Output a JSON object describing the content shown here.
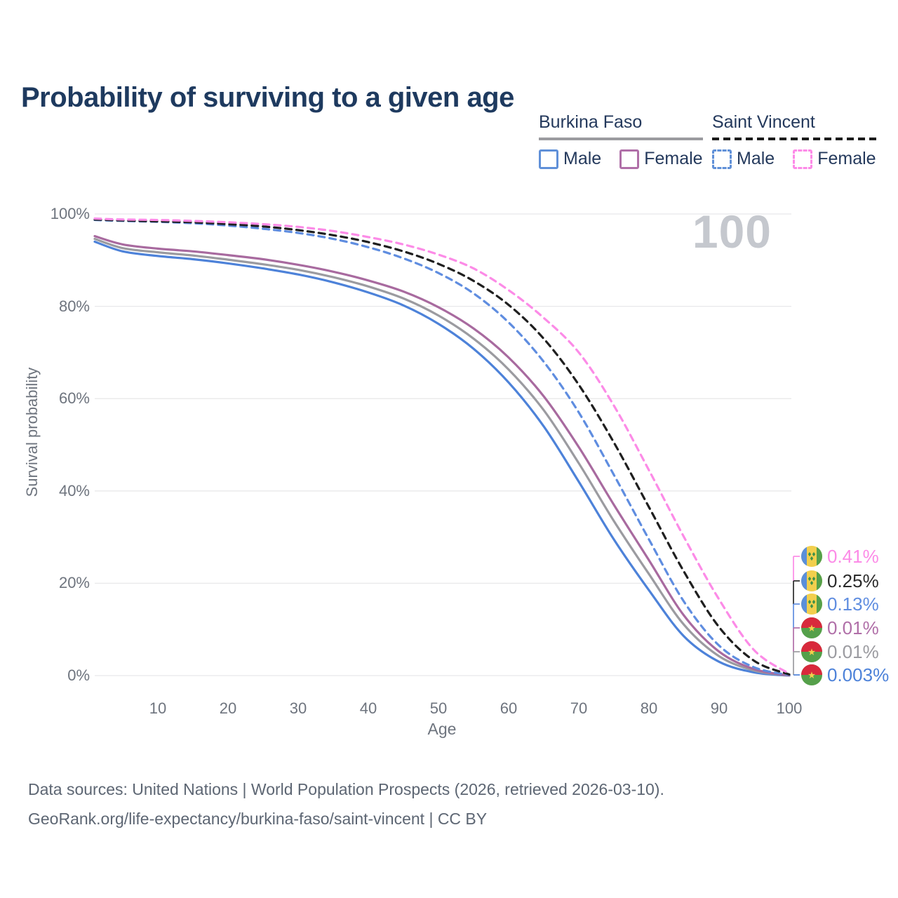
{
  "header": {
    "title": "Probability of surviving to a given age"
  },
  "watermark": "100",
  "legend": {
    "groups": [
      {
        "title": "Burkina Faso",
        "line_style": "solid",
        "line_color": "#9b9ba0",
        "items": [
          {
            "label": "Male",
            "color": "#6090d8",
            "style": "solid"
          },
          {
            "label": "Female",
            "color": "#b06fa8",
            "style": "solid"
          }
        ]
      },
      {
        "title": "Saint Vincent",
        "line_style": "dashed",
        "line_color": "#1c1c1c",
        "items": [
          {
            "label": "Male",
            "color": "#6090d8",
            "style": "dashed"
          },
          {
            "label": "Female",
            "color": "#fd8ae8",
            "style": "dashed"
          }
        ]
      }
    ]
  },
  "chart_data": {
    "type": "line",
    "title": "Probability of surviving to a given age",
    "xlabel": "Age",
    "ylabel": "Survival probability",
    "xlim": [
      1,
      100
    ],
    "ylim": [
      0,
      100
    ],
    "grid": "horizontal",
    "xticks": [
      10,
      20,
      30,
      40,
      50,
      60,
      70,
      80,
      90,
      100
    ],
    "ytick_pcts": [
      0,
      20,
      40,
      60,
      80,
      100
    ],
    "ytick_labels": [
      "0%",
      "20%",
      "40%",
      "60%",
      "80%",
      "100%"
    ],
    "x": [
      1,
      5,
      10,
      15,
      20,
      25,
      30,
      35,
      40,
      45,
      50,
      55,
      60,
      65,
      70,
      75,
      80,
      85,
      90,
      95,
      100
    ],
    "series": [
      {
        "id": "burkina-faso-male",
        "name": "Burkina Faso Male",
        "color": "#4d82d9",
        "dash": "solid",
        "values": [
          94.0,
          91.9,
          90.9,
          90.2,
          89.3,
          88.2,
          86.9,
          85.2,
          83.0,
          80.2,
          76.2,
          70.8,
          63.5,
          54.0,
          42.0,
          29.5,
          18.5,
          8.5,
          3.0,
          0.7,
          0.003
        ]
      },
      {
        "id": "burkina-faso",
        "name": "Burkina Faso",
        "color": "#9b9ba0",
        "dash": "solid",
        "values": [
          94.6,
          92.6,
          91.7,
          91.0,
          90.1,
          89.1,
          87.9,
          86.3,
          84.3,
          81.7,
          78.0,
          73.0,
          66.3,
          57.5,
          46.0,
          33.5,
          22.0,
          11.0,
          4.2,
          1.1,
          0.01
        ]
      },
      {
        "id": "burkina-faso-female",
        "name": "Burkina Faso Female",
        "color": "#a86a9f",
        "dash": "solid",
        "values": [
          95.2,
          93.4,
          92.5,
          91.9,
          91.1,
          90.2,
          89.0,
          87.5,
          85.6,
          83.2,
          79.8,
          75.2,
          68.9,
          60.5,
          49.5,
          37.0,
          25.0,
          13.0,
          5.2,
          1.4,
          0.01
        ]
      },
      {
        "id": "saint-vincent-male",
        "name": "Saint Vincent Male",
        "color": "#5f8de0",
        "dash": "dashed",
        "values": [
          98.7,
          98.5,
          98.3,
          98.0,
          97.5,
          96.8,
          95.9,
          94.6,
          92.8,
          90.4,
          87.2,
          82.8,
          76.5,
          68.0,
          57.0,
          43.5,
          29.5,
          16.0,
          6.5,
          1.8,
          0.13
        ]
      },
      {
        "id": "saint-vincent",
        "name": "Saint Vincent",
        "color": "#1f1f1f",
        "dash": "dashed",
        "values": [
          98.8,
          98.6,
          98.4,
          98.2,
          97.8,
          97.3,
          96.5,
          95.4,
          93.9,
          91.9,
          89.2,
          85.5,
          80.3,
          73.0,
          63.0,
          50.5,
          36.5,
          22.5,
          10.5,
          3.2,
          0.25
        ]
      },
      {
        "id": "saint-vincent-female",
        "name": "Saint Vincent Female",
        "color": "#fc8be7",
        "dash": "dashed",
        "values": [
          99.0,
          98.8,
          98.7,
          98.5,
          98.2,
          97.8,
          97.2,
          96.3,
          95.0,
          93.4,
          91.2,
          88.2,
          83.5,
          77.5,
          70.0,
          58.5,
          44.5,
          30.0,
          16.5,
          5.5,
          0.41
        ]
      }
    ],
    "end_labels": [
      {
        "value": "0.41%",
        "series": "Saint Vincent Female",
        "flag": "saint-vincent",
        "color": "#fc8be7"
      },
      {
        "value": "0.25%",
        "series": "Saint Vincent",
        "flag": "saint-vincent",
        "color": "#2b2b2b"
      },
      {
        "value": "0.13%",
        "series": "Saint Vincent Male",
        "flag": "saint-vincent",
        "color": "#5f8de0"
      },
      {
        "value": "0.01%",
        "series": "Burkina Faso Female",
        "flag": "burkina-faso",
        "color": "#b06fa8"
      },
      {
        "value": "0.01%",
        "series": "Burkina Faso",
        "flag": "burkina-faso",
        "color": "#9b9ba0"
      },
      {
        "value": "0.003%",
        "series": "Burkina Faso Male",
        "flag": "burkina-faso",
        "color": "#4d82d9"
      }
    ]
  },
  "source": {
    "line1": "Data sources: United Nations | World Population Prospects (2026, retrieved 2026-03-10).",
    "line2": "GeoRank.org/life-expectancy/burkina-faso/saint-vincent | CC BY"
  }
}
